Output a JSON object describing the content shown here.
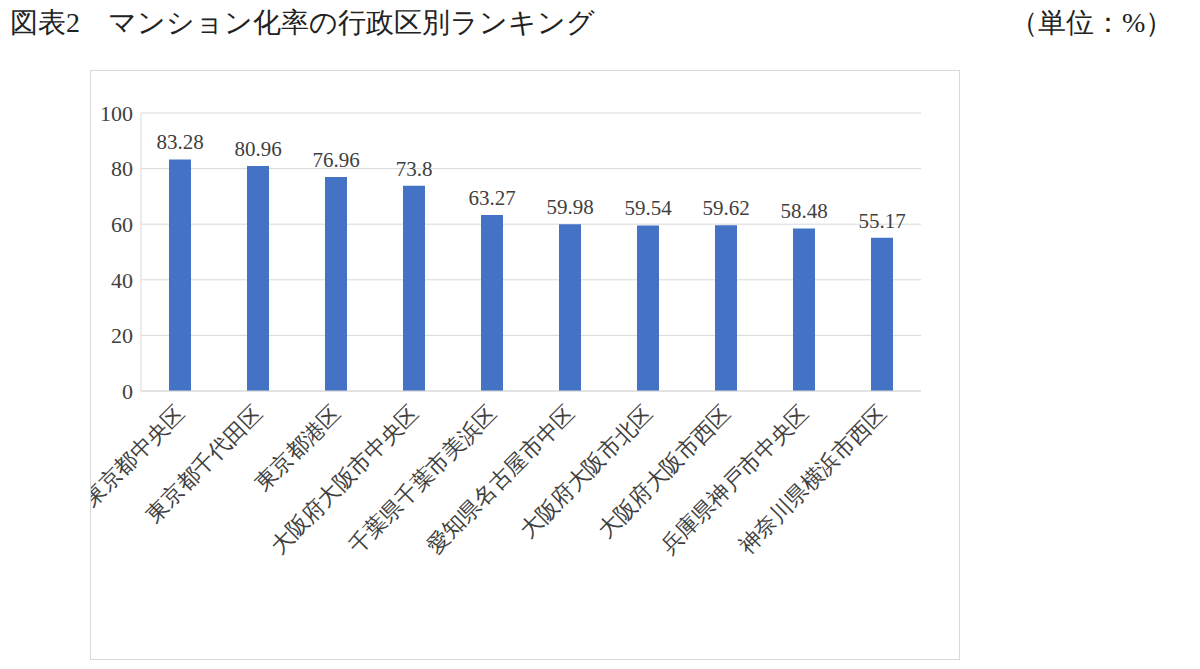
{
  "chart_data": {
    "type": "bar",
    "title": "図表2　マンション化率の行政区別ランキング",
    "subtitle": "（単位：%）",
    "categories": [
      "東京都中央区",
      "東京都千代田区",
      "東京都港区",
      "大阪府大阪市中央区",
      "千葉県千葉市美浜区",
      "愛知県名古屋市中区",
      "大阪府大阪市北区",
      "大阪府大阪市西区",
      "兵庫県神戸市中央区",
      "神奈川県横浜市西区"
    ],
    "values": [
      83.28,
      80.96,
      76.96,
      73.8,
      63.27,
      59.98,
      59.54,
      59.62,
      58.48,
      55.17
    ],
    "color": "#4472c4",
    "ylim": [
      0,
      100
    ],
    "yticks": [
      0,
      20,
      40,
      60,
      80,
      100
    ],
    "grid": true,
    "data_labels": true
  }
}
